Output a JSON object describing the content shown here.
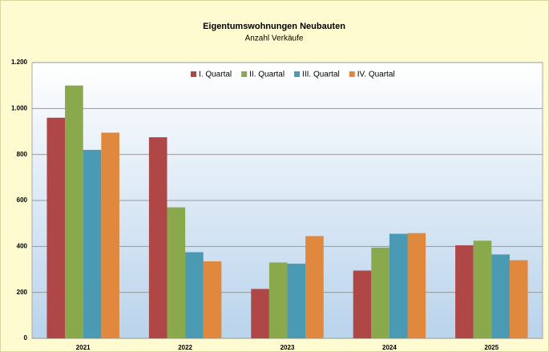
{
  "chart_data": {
    "type": "bar",
    "title": "Eigentumswohnungen Neubauten",
    "subtitle": "Anzahl Verkäufe",
    "categories": [
      "2021",
      "2022",
      "2023",
      "2024",
      "2025"
    ],
    "series": [
      {
        "name": "I. Quartal",
        "color": "#b04747",
        "values": [
          960,
          875,
          215,
          295,
          405
        ]
      },
      {
        "name": "II. Quartal",
        "color": "#8aa84c",
        "values": [
          1100,
          570,
          330,
          395,
          425
        ]
      },
      {
        "name": "III. Quartal",
        "color": "#4a9ab3",
        "values": [
          820,
          375,
          325,
          455,
          365
        ]
      },
      {
        "name": "IV. Quartal",
        "color": "#e0883e",
        "values": [
          895,
          335,
          445,
          458,
          340
        ]
      }
    ],
    "ylim": [
      0,
      1200
    ],
    "yticks": [
      0,
      200,
      400,
      600,
      800,
      {
        "value": 1000,
        "label": "1.000"
      },
      {
        "value": 1200,
        "label": "1.200"
      }
    ],
    "grid": true,
    "legend": "top"
  }
}
